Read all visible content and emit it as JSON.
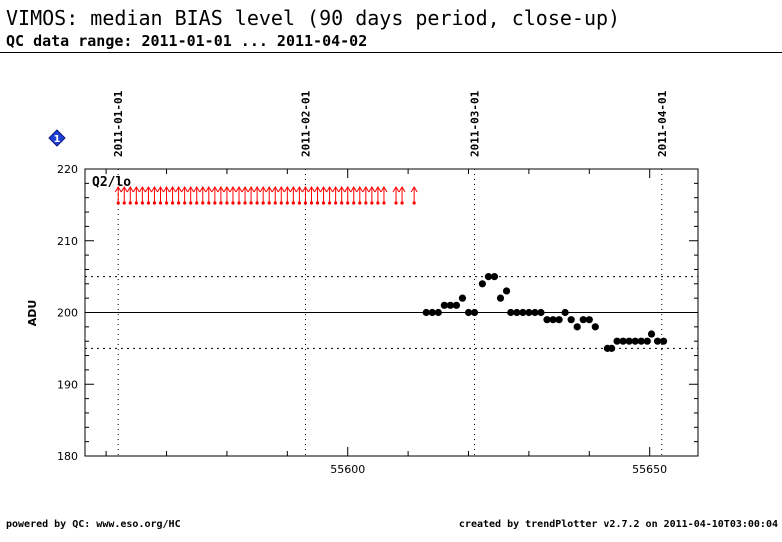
{
  "header": {
    "title": "VIMOS: median BIAS level (90 days period, close-up)",
    "subtitle": "QC data range: 2011-01-01 ... 2011-04-02"
  },
  "footer": {
    "left": "powered by QC: www.eso.org/HC",
    "right": "created by trendPlotter v2.7.2 on 2011-04-10T03:00:04"
  },
  "badge": {
    "icon": "info-diamond-icon",
    "label": "1",
    "color": "#1f3fd6"
  },
  "chart_data": {
    "type": "scatter",
    "panel_label": "Q2/lo",
    "ylabel": "ADU",
    "xlim": [
      55556.5,
      55658
    ],
    "ylim": [
      180,
      220
    ],
    "x_ticks": [
      55600,
      55650
    ],
    "y_ticks": [
      180,
      190,
      200,
      210,
      220
    ],
    "reference_lines": {
      "median": 200,
      "thresholds": [
        195,
        205
      ]
    },
    "date_markers": [
      {
        "label": "2011-01-01",
        "mjd": 55562
      },
      {
        "label": "2011-02-01",
        "mjd": 55593
      },
      {
        "label": "2011-03-01",
        "mjd": 55621
      },
      {
        "label": "2011-04-01",
        "mjd": 55652
      }
    ],
    "grid": false,
    "colors": {
      "in_range": "#000000",
      "out_of_range": "#ff0000"
    },
    "series": [
      {
        "values": [
          {
            "x": 55613.0,
            "y": 200
          },
          {
            "x": 55614.0,
            "y": 200
          },
          {
            "x": 55615.0,
            "y": 200
          },
          {
            "x": 55616.0,
            "y": 201
          },
          {
            "x": 55617.0,
            "y": 201
          },
          {
            "x": 55618.0,
            "y": 201
          },
          {
            "x": 55619.0,
            "y": 202
          },
          {
            "x": 55620.0,
            "y": 200
          },
          {
            "x": 55621.0,
            "y": 200
          },
          {
            "x": 55622.3,
            "y": 204
          },
          {
            "x": 55623.3,
            "y": 205
          },
          {
            "x": 55624.3,
            "y": 205
          },
          {
            "x": 55625.3,
            "y": 202
          },
          {
            "x": 55626.3,
            "y": 203
          },
          {
            "x": 55627.0,
            "y": 200
          },
          {
            "x": 55628.0,
            "y": 200
          },
          {
            "x": 55629.0,
            "y": 200
          },
          {
            "x": 55630.0,
            "y": 200
          },
          {
            "x": 55631.0,
            "y": 200
          },
          {
            "x": 55632.0,
            "y": 200
          },
          {
            "x": 55633.0,
            "y": 199
          },
          {
            "x": 55634.0,
            "y": 199
          },
          {
            "x": 55635.0,
            "y": 199
          },
          {
            "x": 55636.0,
            "y": 200
          },
          {
            "x": 55637.0,
            "y": 199
          },
          {
            "x": 55638.0,
            "y": 198
          },
          {
            "x": 55639.0,
            "y": 199
          },
          {
            "x": 55640.0,
            "y": 199
          },
          {
            "x": 55641.0,
            "y": 198
          },
          {
            "x": 55643.0,
            "y": 195
          },
          {
            "x": 55643.7,
            "y": 195
          },
          {
            "x": 55644.6,
            "y": 196
          },
          {
            "x": 55645.6,
            "y": 196
          },
          {
            "x": 55646.6,
            "y": 196
          },
          {
            "x": 55647.6,
            "y": 196
          },
          {
            "x": 55648.6,
            "y": 196
          },
          {
            "x": 55649.6,
            "y": 196
          },
          {
            "x": 55650.3,
            "y": 197
          },
          {
            "x": 55651.3,
            "y": 196
          },
          {
            "x": 55652.3,
            "y": 196
          }
        ]
      }
    ],
    "out_of_range_markers": {
      "direction": "above",
      "x": [
        55562.0,
        55563.0,
        55564.0,
        55565.0,
        55566.0,
        55567.0,
        55568.0,
        55569.0,
        55570.0,
        55571.0,
        55572.0,
        55573.0,
        55574.0,
        55575.0,
        55576.0,
        55577.0,
        55578.0,
        55579.0,
        55580.0,
        55581.0,
        55582.0,
        55583.0,
        55584.0,
        55585.0,
        55586.0,
        55587.0,
        55588.0,
        55589.0,
        55590.0,
        55591.0,
        55592.0,
        55593.0,
        55594.0,
        55595.0,
        55596.0,
        55597.0,
        55598.0,
        55599.0,
        55600.0,
        55601.0,
        55602.0,
        55603.0,
        55604.0,
        55605.0,
        55606.0,
        55608.0,
        55609.0,
        55611.0
      ]
    }
  }
}
